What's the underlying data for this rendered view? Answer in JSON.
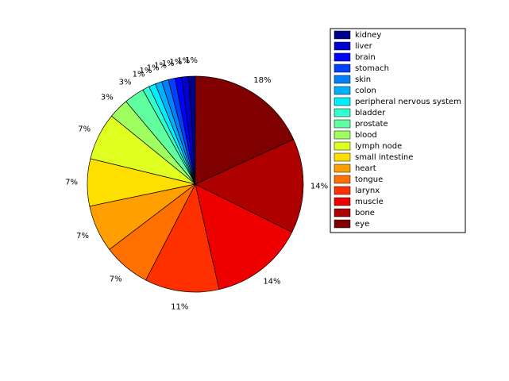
{
  "chart_data": {
    "type": "pie",
    "categories": [
      "kidney",
      "liver",
      "brain",
      "stomach",
      "skin",
      "colon",
      "peripheral nervous system",
      "bladder",
      "prostate",
      "blood",
      "lymph node",
      "small intestine",
      "heart",
      "tongue",
      "larynx",
      "muscle",
      "bone",
      "eye"
    ],
    "values": [
      1,
      1,
      1,
      1,
      1,
      1,
      1,
      1,
      3,
      3,
      7,
      7,
      7,
      7,
      11,
      14,
      14,
      18
    ],
    "value_labels": [
      "1%",
      "1%",
      "1%",
      "1%",
      "1%",
      "1%",
      "1%",
      "1%",
      "3%",
      "3%",
      "7%",
      "7%",
      "7%",
      "7%",
      "11%",
      "14%",
      "14%",
      "18%"
    ],
    "colors": [
      "#00008f",
      "#0000cf",
      "#0000ff",
      "#0040ff",
      "#0080ff",
      "#00b0ff",
      "#00efff",
      "#30ffcf",
      "#60ff9f",
      "#9fff60",
      "#dfff20",
      "#ffdf00",
      "#ff9f00",
      "#ff7000",
      "#ff3000",
      "#ef0000",
      "#af0000",
      "#800000"
    ],
    "legend": "upper right"
  }
}
